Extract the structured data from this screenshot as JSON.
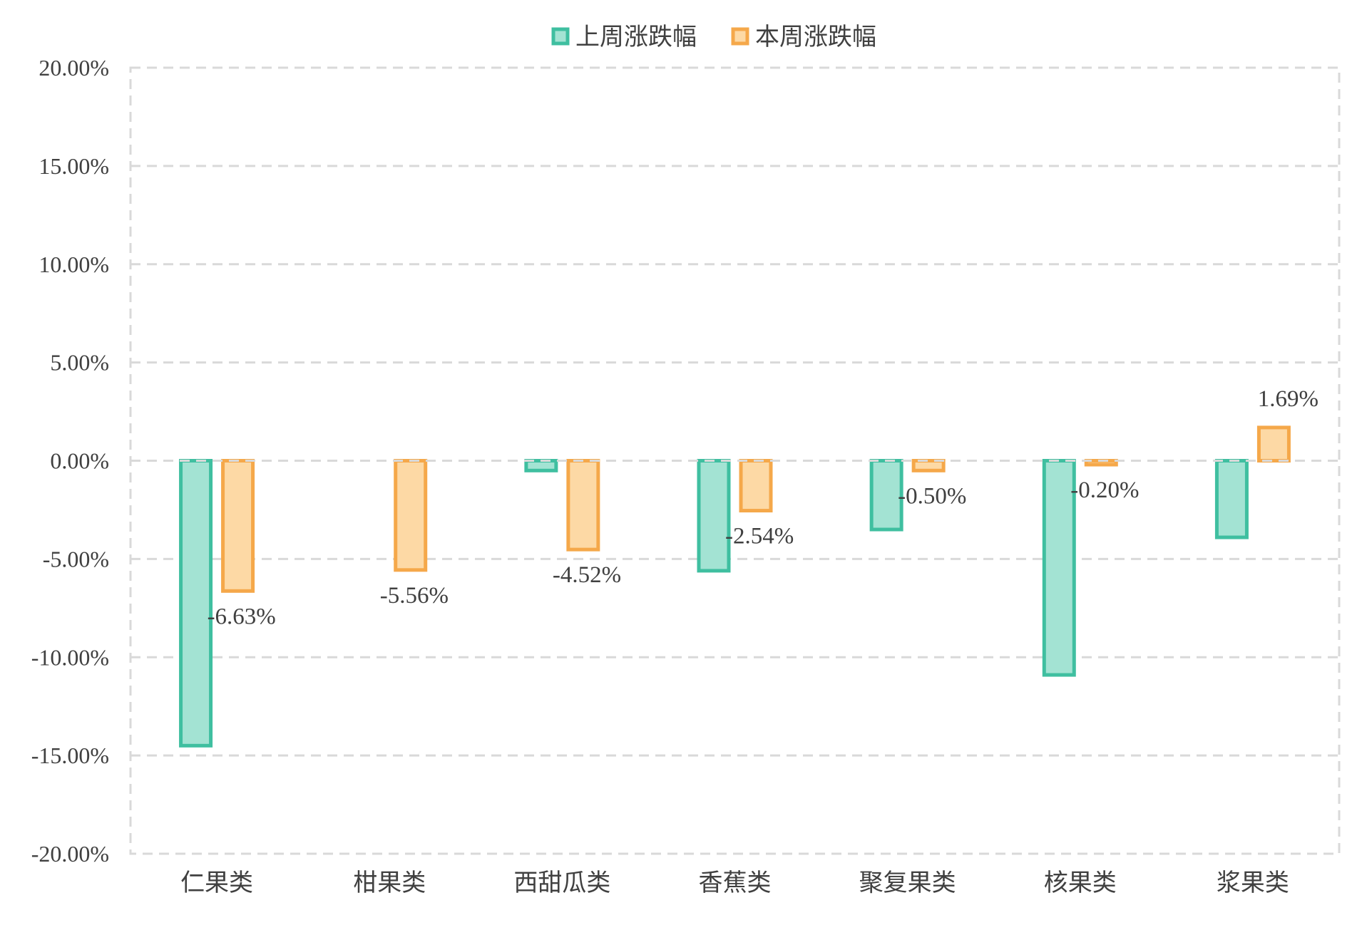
{
  "chart_data": {
    "type": "bar",
    "categories": [
      "仁果类",
      "柑果类",
      "西甜瓜类",
      "香蕉类",
      "聚复果类",
      "核果类",
      "浆果类"
    ],
    "series": [
      {
        "name": "上周涨跌幅",
        "values": [
          -14.5,
          0,
          -0.5,
          -5.6,
          -3.5,
          -10.9,
          -3.9
        ],
        "stroke": "#3FBFA0",
        "fill": "#A3E3D3"
      },
      {
        "name": "本周涨跌幅",
        "values": [
          -6.63,
          -5.56,
          -4.52,
          -2.54,
          -0.5,
          -0.2,
          1.69
        ],
        "stroke": "#F5A84A",
        "fill": "#FDD9A5",
        "labels": [
          "-6.63%",
          "-5.56%",
          "-4.52%",
          "-2.54%",
          "-0.50%",
          "-0.20%",
          "1.69%"
        ]
      }
    ],
    "yticks": [
      "20.00%",
      "15.00%",
      "10.00%",
      "5.00%",
      "0.00%",
      "-5.00%",
      "-10.00%",
      "-15.00%",
      "-20.00%"
    ],
    "ylim": [
      -20,
      20
    ],
    "grid": true,
    "legend_position": "top-center",
    "title": "",
    "xlabel": "",
    "ylabel": ""
  }
}
